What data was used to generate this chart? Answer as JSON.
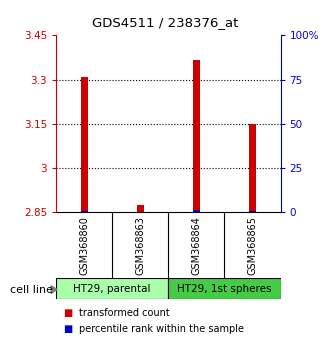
{
  "title": "GDS4511 / 238376_at",
  "samples": [
    "GSM368860",
    "GSM368863",
    "GSM368864",
    "GSM368865"
  ],
  "red_values": [
    3.31,
    2.875,
    3.365,
    3.148
  ],
  "blue_values": [
    2.856,
    2.852,
    2.858,
    2.854
  ],
  "ylim_left": [
    2.85,
    3.45
  ],
  "yticks_left": [
    2.85,
    3.0,
    3.15,
    3.3,
    3.45
  ],
  "ytick_labels_left": [
    "2.85",
    "3",
    "3.15",
    "3.3",
    "3.45"
  ],
  "ylim_right": [
    0,
    100
  ],
  "yticks_right": [
    0,
    25,
    50,
    75,
    100
  ],
  "ytick_labels_right": [
    "0",
    "25",
    "50",
    "75",
    "100%"
  ],
  "bar_bottom": 2.85,
  "bar_width": 0.12,
  "red_color": "#cc0000",
  "blue_color": "#0000cc",
  "cell_groups": [
    {
      "label": "HT29, parental",
      "samples": [
        0,
        1
      ],
      "color": "#aaffaa"
    },
    {
      "label": "HT29, 1st spheres",
      "samples": [
        2,
        3
      ],
      "color": "#44cc44"
    }
  ],
  "sample_box_color": "#c8c8c8",
  "cell_line_label": "cell line",
  "legend_red": "transformed count",
  "legend_blue": "percentile rank within the sample",
  "left_axis_color": "#cc0000",
  "right_axis_color": "#0000cc",
  "bg_color": "#ffffff",
  "dotted_lines": [
    3.0,
    3.15,
    3.3
  ]
}
